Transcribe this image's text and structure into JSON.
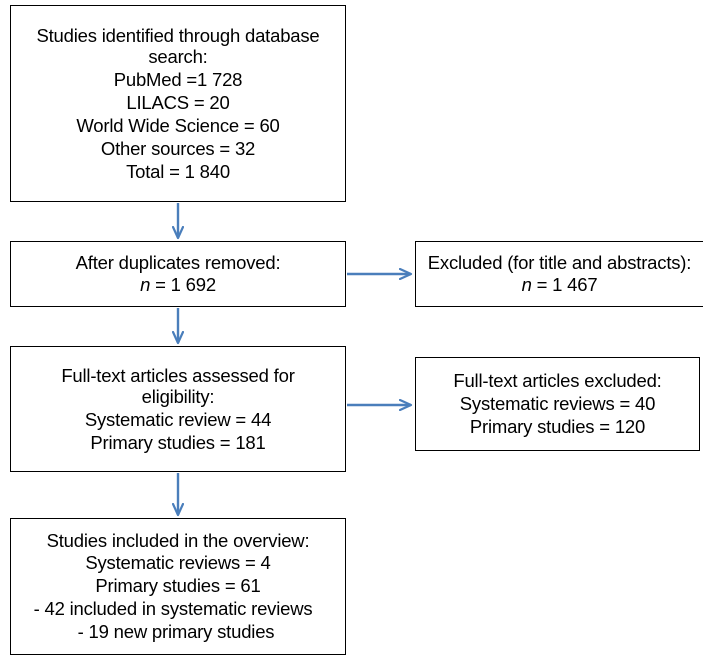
{
  "identified": {
    "lines": [
      "Studies identified through database",
      "search:",
      "PubMed =1 728",
      "LILACS = 20",
      "World Wide Science = 60",
      "Other sources = 32",
      "Total = 1 840"
    ]
  },
  "dedup": {
    "title": "After duplicates removed:",
    "n_label": "n",
    "n_value": " = 1 692"
  },
  "excluded_title": {
    "title": "Excluded (for title and abstracts):",
    "n_label": "n",
    "n_value": " = 1 467"
  },
  "fulltext": {
    "lines": [
      "Full-text articles assessed for",
      "eligibility:",
      "Systematic review = 44",
      "Primary studies = 181"
    ]
  },
  "excluded_fulltext": {
    "lines": [
      "Full-text articles excluded:",
      "Systematic reviews = 40",
      "Primary studies = 120"
    ]
  },
  "included": {
    "lines": [
      "Studies included in the overview:",
      "Systematic reviews = 4",
      "Primary studies = 61"
    ],
    "list": [
      "-  42 included in systematic reviews",
      "- 19 new primary studies"
    ]
  },
  "colors": {
    "arrow": "#4a7ebb",
    "box_border": "#000000"
  }
}
